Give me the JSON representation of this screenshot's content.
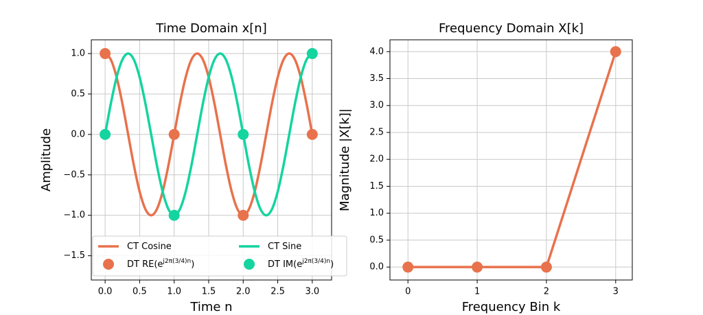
{
  "chart_data": [
    {
      "type": "line",
      "title": "Time Domain x[n]",
      "xlabel": "Time n",
      "ylabel": "Amplitude",
      "xlim": [
        -0.2,
        3.28
      ],
      "ylim": [
        -1.8,
        1.17
      ],
      "xticks": [
        {
          "value": 0,
          "label": "0.0"
        },
        0.5,
        {
          "value": 1,
          "label": "1.0"
        },
        1.5,
        {
          "value": 2,
          "label": "2.0"
        },
        2.5,
        {
          "value": 3,
          "label": "3.0"
        }
      ],
      "yticks": [
        {
          "value": -1.5,
          "label": "−1.5"
        },
        {
          "value": -1,
          "label": "−1.0"
        },
        {
          "value": -0.5,
          "label": "−0.5"
        },
        {
          "value": 0,
          "label": "0.0"
        },
        0.5,
        {
          "value": 1,
          "label": "1.0"
        }
      ],
      "grid": true,
      "legend": {
        "loc": "lower center",
        "ncol": 2
      },
      "series": [
        {
          "name": "CT Cosine",
          "color": "#e8724c",
          "style": "line",
          "x": [
            0,
            0.0833,
            0.1667,
            0.25,
            0.3333,
            0.4167,
            0.5,
            0.5833,
            0.6667,
            0.75,
            0.8333,
            0.9167,
            1,
            1.0833,
            1.1667,
            1.25,
            1.3333,
            1.4167,
            1.5,
            1.5833,
            1.6667,
            1.75,
            1.8333,
            1.9167,
            2,
            2.0833,
            2.1667,
            2.25,
            2.3333,
            2.4167,
            2.5,
            2.5833,
            2.6667,
            2.75,
            2.8333,
            2.9167,
            3
          ],
          "values": [
            1,
            0.9239,
            0.7071,
            0.3827,
            0,
            -0.3827,
            -0.7071,
            -0.9239,
            -1,
            -0.9239,
            -0.7071,
            -0.3827,
            0,
            0.3827,
            0.7071,
            0.9239,
            1,
            0.9239,
            0.7071,
            0.3827,
            0,
            -0.3827,
            -0.7071,
            -0.9239,
            -1,
            -0.9239,
            -0.7071,
            -0.3827,
            0,
            0.3827,
            0.7071,
            0.9239,
            1,
            0.9239,
            0.7071,
            0.3827,
            0
          ]
        },
        {
          "name": "CT Sine",
          "color": "#14d49f",
          "style": "line",
          "x": [
            0,
            0.0833,
            0.1667,
            0.25,
            0.3333,
            0.4167,
            0.5,
            0.5833,
            0.6667,
            0.75,
            0.8333,
            0.9167,
            1,
            1.0833,
            1.1667,
            1.25,
            1.3333,
            1.4167,
            1.5,
            1.5833,
            1.6667,
            1.75,
            1.8333,
            1.9167,
            2,
            2.0833,
            2.1667,
            2.25,
            2.3333,
            2.4167,
            2.5,
            2.5833,
            2.6667,
            2.75,
            2.8333,
            2.9167,
            3
          ],
          "values": [
            0,
            0.3827,
            0.7071,
            0.9239,
            1,
            0.9239,
            0.7071,
            0.3827,
            0,
            -0.3827,
            -0.7071,
            -0.9239,
            -1,
            -0.9239,
            -0.7071,
            -0.3827,
            0,
            0.3827,
            0.7071,
            0.9239,
            1,
            0.9239,
            0.7071,
            0.3827,
            0,
            -0.3827,
            -0.7071,
            -0.9239,
            -1,
            -0.9239,
            -0.7071,
            -0.3827,
            0,
            0.3827,
            0.7071,
            0.9239,
            1
          ]
        },
        {
          "name": "DT RE(e^{j2π(3/4)n})",
          "color": "#e8724c",
          "style": "markers",
          "x": [
            0,
            1,
            2,
            3
          ],
          "values": [
            1,
            0,
            -1,
            0
          ]
        },
        {
          "name": "DT IM(e^{j2π(3/4)n})",
          "color": "#14d49f",
          "style": "markers",
          "x": [
            0,
            1,
            2,
            3
          ],
          "values": [
            0,
            -1,
            0,
            1
          ]
        }
      ]
    },
    {
      "type": "line",
      "title": "Frequency Domain X[k]",
      "xlabel": "Frequency Bin k",
      "ylabel": "Magnitude |X[k]|",
      "xlim": [
        -0.26,
        3.24
      ],
      "ylim": [
        -0.24,
        4.22
      ],
      "xticks": [
        0,
        1,
        2,
        3
      ],
      "yticks": [
        {
          "value": 0,
          "label": "0.0"
        },
        0.5,
        {
          "value": 1,
          "label": "1.0"
        },
        1.5,
        {
          "value": 2,
          "label": "2.0"
        },
        2.5,
        {
          "value": 3,
          "label": "3.0"
        },
        3.5,
        {
          "value": 4,
          "label": "4.0"
        }
      ],
      "grid": true,
      "series": [
        {
          "color": "#e8724c",
          "style": "line+markers",
          "x": [
            0,
            1,
            2,
            3
          ],
          "values": [
            0,
            0,
            0,
            4
          ]
        }
      ]
    }
  ]
}
